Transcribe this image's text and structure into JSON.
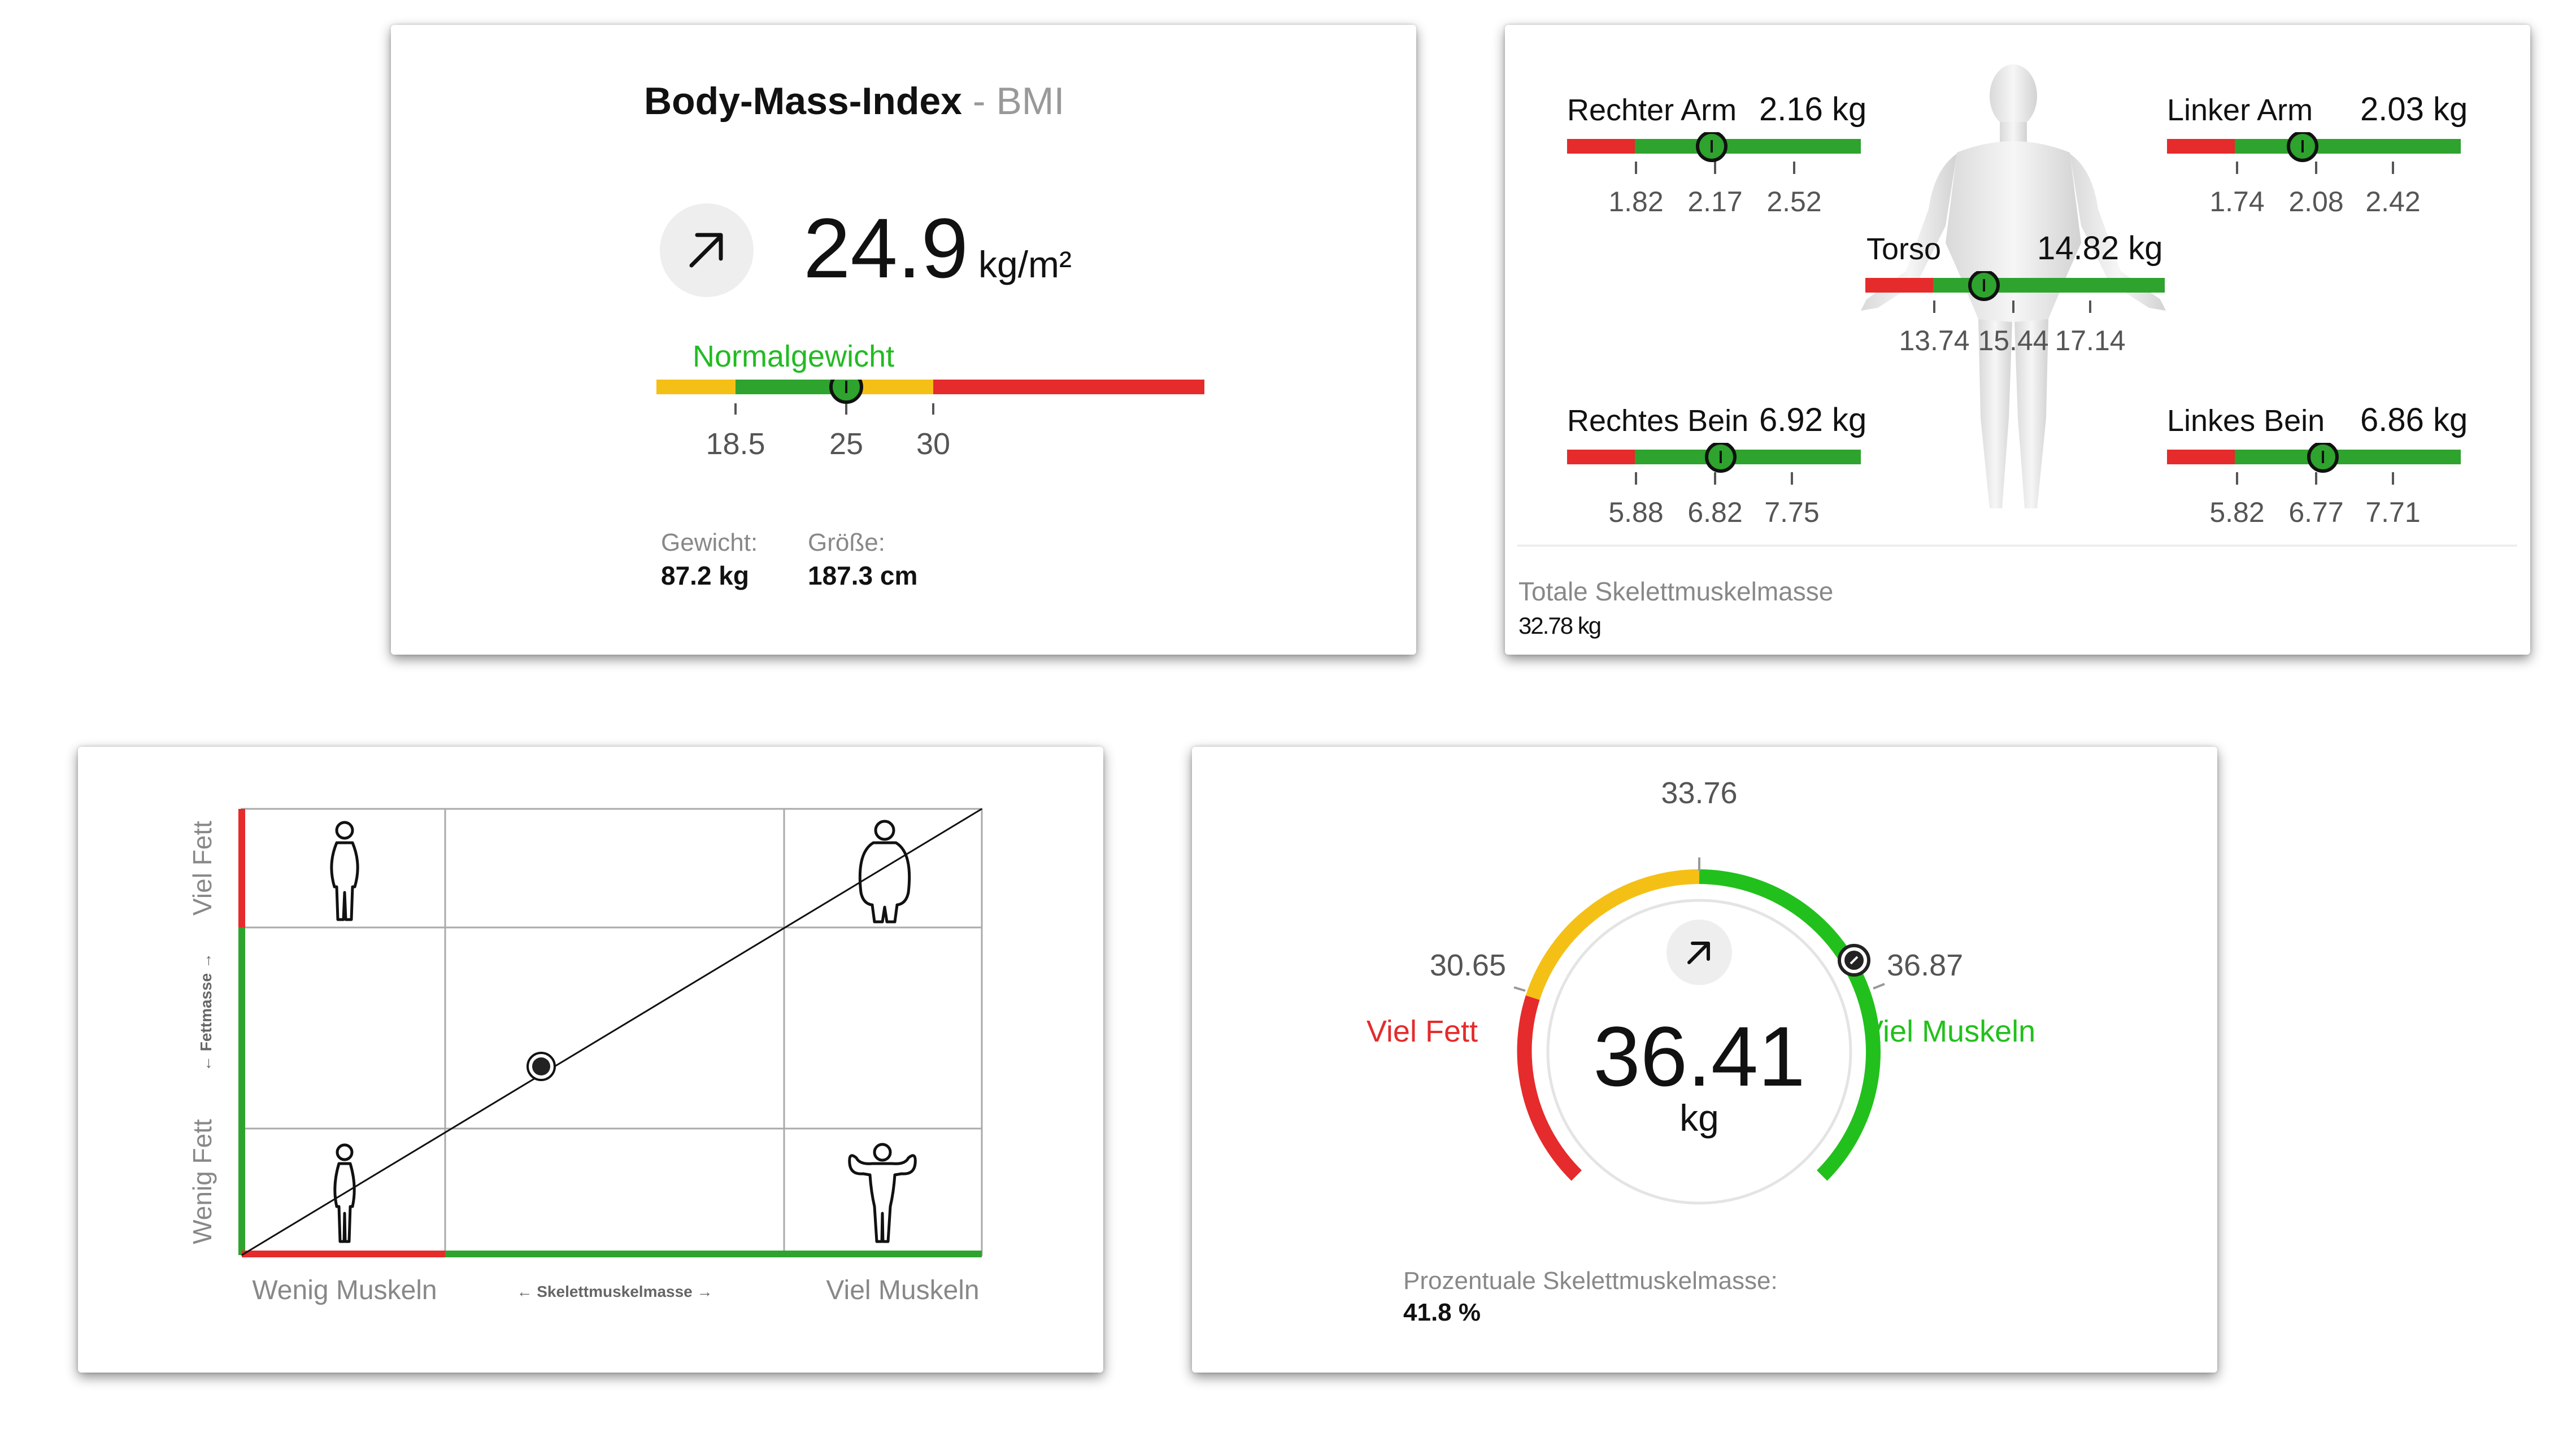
{
  "colors": {
    "red": "#e52b2b",
    "yellow": "#f5c015",
    "green": "#2ea32e",
    "bright_green": "#22c01c",
    "grey_text": "#888888",
    "dark": "#111111"
  },
  "bmi": {
    "title": "Body-Mass-Index",
    "title_sep": " - ",
    "subtitle": "BMI",
    "trend_icon": "arrow-up-right-icon",
    "value": "24.9",
    "unit": "kg/m²",
    "category": "Normalgewicht",
    "scale_ticks": [
      "18.5",
      "25",
      "30"
    ],
    "marker_value": 24.9,
    "weight_label": "Gewicht:",
    "weight_value": "87.2 kg",
    "height_label": "Größe:",
    "height_value": "187.3 cm"
  },
  "segments": {
    "right_arm": {
      "label": "Rechter Arm",
      "value": "2.16 kg",
      "ticks": [
        "1.82",
        "2.17",
        "2.52"
      ]
    },
    "left_arm": {
      "label": "Linker Arm",
      "value": "2.03 kg",
      "ticks": [
        "1.74",
        "2.08",
        "2.42"
      ]
    },
    "torso": {
      "label": "Torso",
      "value": "14.82 kg",
      "ticks": [
        "13.74",
        "15.44",
        "17.14"
      ]
    },
    "right_leg": {
      "label": "Rechtes Bein",
      "value": "6.92 kg",
      "ticks": [
        "5.88",
        "6.82",
        "7.75"
      ]
    },
    "left_leg": {
      "label": "Linkes Bein",
      "value": "6.86 kg",
      "ticks": [
        "5.82",
        "6.77",
        "7.71"
      ]
    },
    "total_label": "Totale Skelettmuskelmasse",
    "total_value": "32.78 kg"
  },
  "quadrant": {
    "y_top": "Viel Fett",
    "y_bottom": "Wenig Fett",
    "y_axis": "← Fettmasse →",
    "x_left": "Wenig Muskeln",
    "x_right": "Viel Muskeln",
    "x_axis": "← Skelettmuskelmasse →",
    "icons": [
      "person-slim-icon",
      "person-obese-icon",
      "person-thin-icon",
      "person-muscular-icon"
    ]
  },
  "smm_gauge": {
    "top_tick": "33.76",
    "left_tick": "30.65",
    "right_tick": "36.87",
    "left_label": "Viel Fett",
    "right_label": "Viel Muskeln",
    "trend_icon": "arrow-up-right-icon",
    "value": "36.41",
    "unit": "kg",
    "percent_label": "Prozentuale Skelettmuskelmasse:",
    "percent_value": "41.8 %"
  }
}
